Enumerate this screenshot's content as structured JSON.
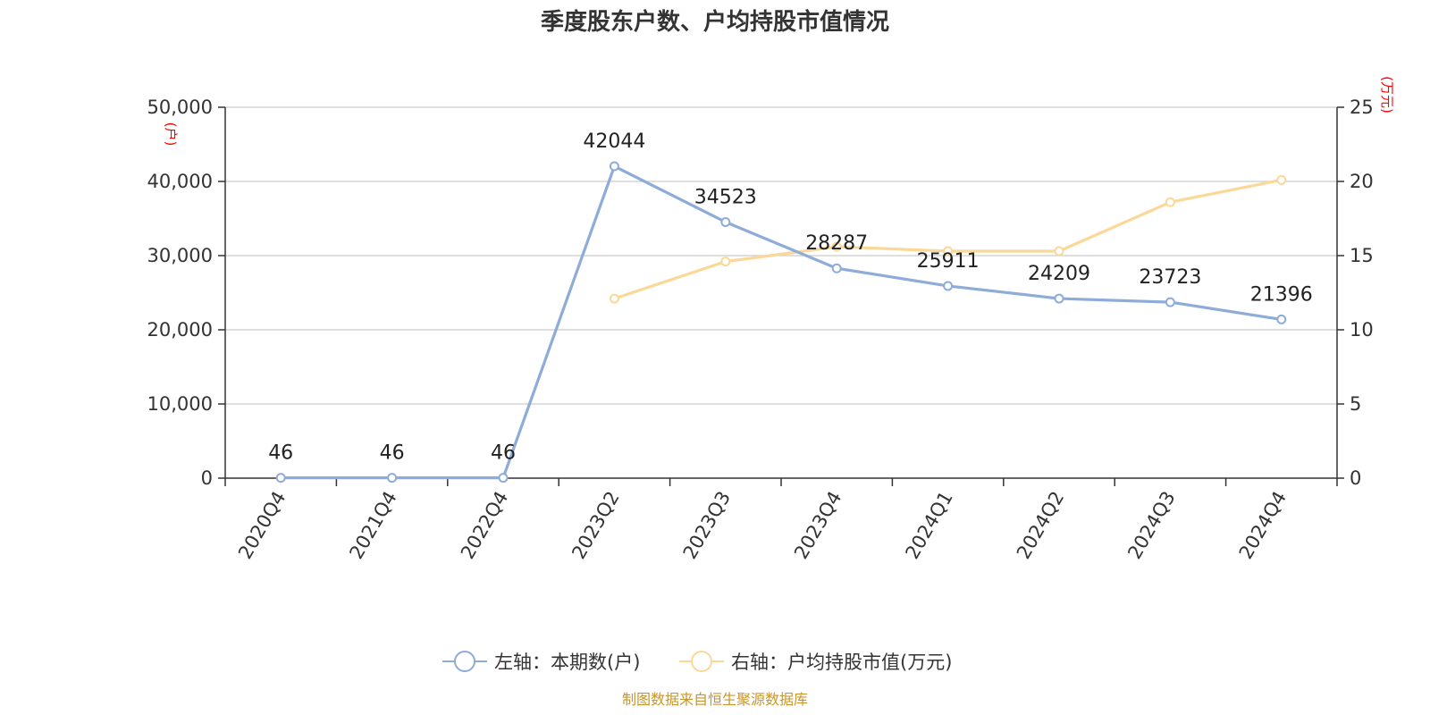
{
  "chart_data": {
    "type": "line",
    "title": "季度股东户数、户均持股市值情况",
    "categories": [
      "2020Q4",
      "2021Q4",
      "2022Q4",
      "2023Q2",
      "2023Q3",
      "2023Q4",
      "2024Q1",
      "2024Q2",
      "2024Q3",
      "2024Q4"
    ],
    "y_left": {
      "unit": "(户)",
      "ylim": [
        0,
        50000
      ],
      "ticks": [
        "0",
        "10,000",
        "20,000",
        "30,000",
        "40,000",
        "50,000"
      ]
    },
    "y_right": {
      "unit": "(万元)",
      "ylim": [
        0,
        25
      ],
      "ticks": [
        "0",
        "5",
        "10",
        "15",
        "20",
        "25"
      ]
    },
    "grid": true,
    "legend_position": "bottom",
    "series": [
      {
        "name": "左轴：本期数(户)",
        "axis": "left",
        "color": "#8eacd8",
        "values": [
          46,
          46,
          46,
          42044,
          34523,
          28287,
          25911,
          24209,
          23723,
          21396
        ],
        "labels": [
          "46",
          "46",
          "46",
          "42044",
          "34523",
          "28287",
          "25911",
          "24209",
          "23723",
          "21396"
        ]
      },
      {
        "name": "右轴：户均持股市值(万元)",
        "axis": "right",
        "color": "#fbd897",
        "values": [
          null,
          null,
          null,
          12.1,
          14.6,
          15.6,
          15.3,
          15.3,
          18.6,
          20.1
        ]
      }
    ]
  },
  "source": "制图数据来自恒生聚源数据库"
}
